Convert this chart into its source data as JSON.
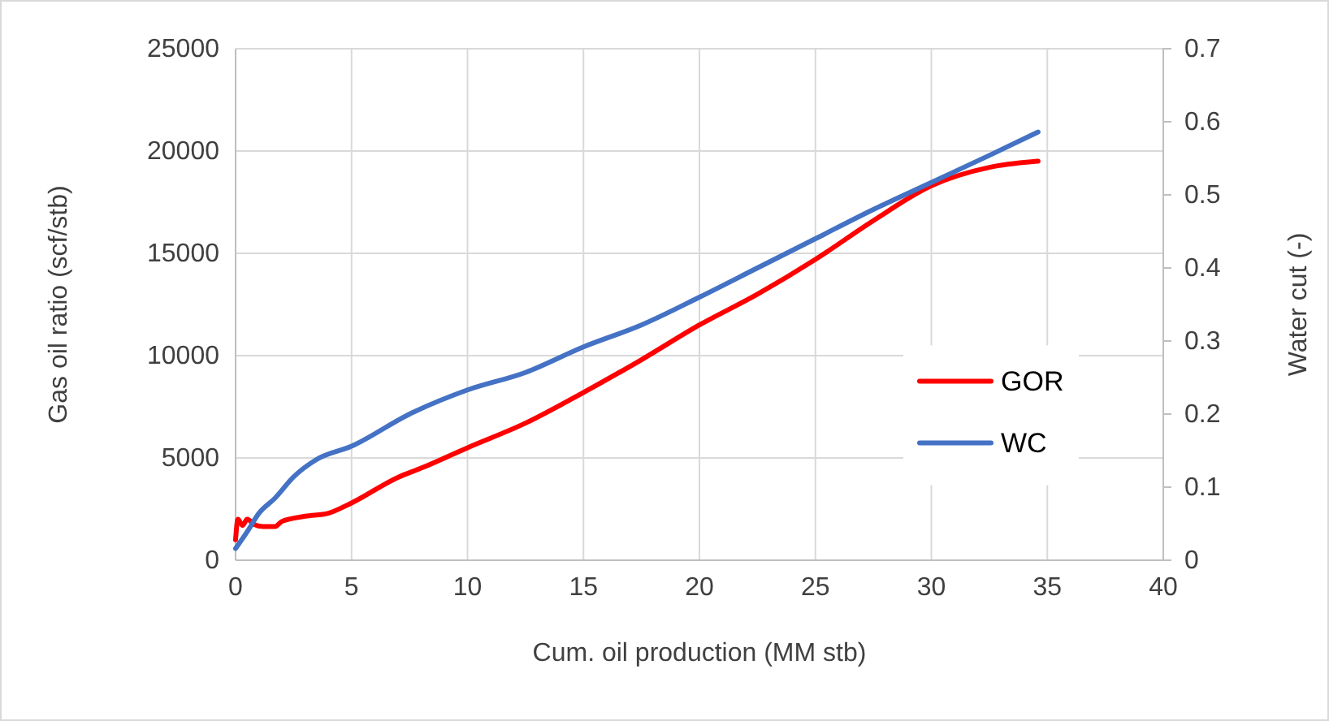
{
  "chart_data": {
    "type": "line",
    "xlabel": "Cum. oil production (MM stb)",
    "ylabel": "Gas oil ratio (scf/stb)",
    "y2label": "Water cut (-)",
    "xlim": [
      0,
      40
    ],
    "xticks": [
      0,
      5,
      10,
      15,
      20,
      25,
      30,
      35,
      40
    ],
    "ylim": [
      0,
      25000
    ],
    "yticks": [
      0,
      5000,
      10000,
      15000,
      20000,
      25000
    ],
    "y2lim": [
      0,
      0.7
    ],
    "y2ticks": [
      0,
      0.1,
      0.2,
      0.3,
      0.4,
      0.5,
      0.6,
      0.7
    ],
    "grid": true,
    "legend": "right",
    "line_style": "solid",
    "marker": "none",
    "series": [
      {
        "name": "GOR",
        "color": "#ff0000",
        "x": [
          0,
          0.1,
          0.3,
          0.5,
          0.8,
          1.2,
          1.7,
          2,
          3,
          4,
          5,
          7,
          8,
          10,
          12.5,
          15,
          17.5,
          20,
          22.5,
          25,
          27.5,
          30,
          32.5,
          34.6
        ],
        "values": [
          1000,
          2000,
          1700,
          2000,
          1750,
          1650,
          1650,
          1900,
          2150,
          2300,
          2800,
          4050,
          4500,
          5500,
          6700,
          8200,
          9800,
          11500,
          13000,
          14700,
          16600,
          18300,
          19200,
          19500
        ]
      },
      {
        "name": "WC",
        "color": "#4472c4",
        "axis": "y2",
        "x": [
          0,
          0.5,
          1,
          1.7,
          2.5,
          3.5,
          5,
          7.5,
          10,
          12.5,
          15,
          17.5,
          20,
          22.5,
          25,
          27.5,
          30,
          32.5,
          34.6
        ],
        "values": [
          0.016,
          0.039,
          0.064,
          0.085,
          0.114,
          0.138,
          0.156,
          0.2,
          0.233,
          0.257,
          0.292,
          0.322,
          0.36,
          0.4,
          0.44,
          0.48,
          0.517,
          0.554,
          0.586
        ]
      }
    ]
  }
}
